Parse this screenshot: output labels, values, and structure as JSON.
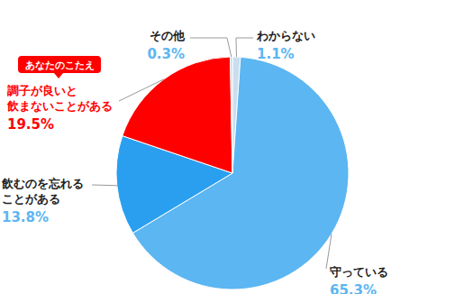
{
  "chart_data": {
    "type": "pie",
    "categories": [
      "わからない",
      "守っている",
      "飲むのを忘れる\nことがある",
      "調子が良いと\n飲まないことがある",
      "その他"
    ],
    "values": [
      1.1,
      65.3,
      13.8,
      19.5,
      0.3
    ],
    "value_labels": [
      "1.1%",
      "65.3%",
      "13.8%",
      "19.5%",
      "0.3%"
    ],
    "data_labels": true,
    "colors": [
      "#c9def0",
      "#5cb6f2",
      "#2a9ff0",
      "#ff0000",
      "#c9d3dc"
    ],
    "annotations": [
      {
        "text": "あなたのこたえ",
        "category": "調子が良いと\n飲まないことがある"
      }
    ]
  }
}
